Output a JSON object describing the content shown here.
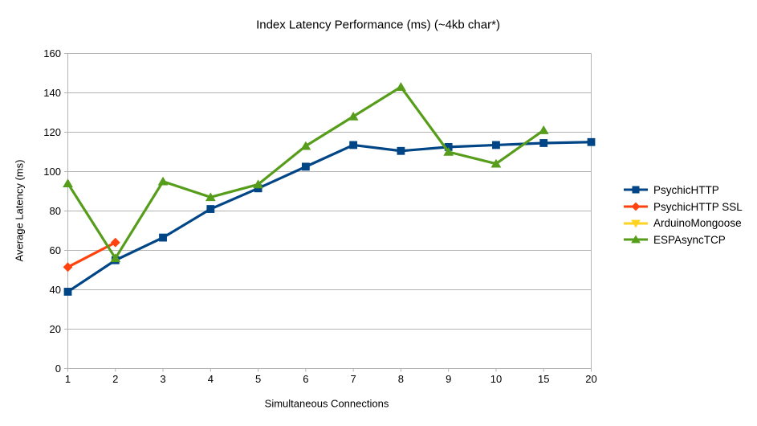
{
  "chart_data": {
    "type": "line",
    "title": "Index Latency Performance (ms) (~4kb char*)",
    "xlabel": "Simultaneous Connections",
    "ylabel": "Average Latency (ms)",
    "categories": [
      "1",
      "2",
      "3",
      "4",
      "5",
      "6",
      "7",
      "8",
      "9",
      "10",
      "15",
      "20"
    ],
    "ylim": [
      0,
      160
    ],
    "yticks": [
      0,
      20,
      40,
      60,
      80,
      100,
      120,
      140,
      160
    ],
    "grid": "horizontal",
    "legend_position": "right",
    "colors": {
      "grid": "#b3b3b3",
      "axis_text": "#000000",
      "background": "#ffffff"
    },
    "series": [
      {
        "name": "PsychicHTTP",
        "color": "#004586",
        "marker": "square",
        "values": [
          39,
          55,
          66.5,
          81,
          91.5,
          102.5,
          113.5,
          110.5,
          112.5,
          113.5,
          114.5,
          115
        ]
      },
      {
        "name": "PsychicHTTP SSL",
        "color": "#FF420E",
        "marker": "diamond",
        "values": [
          51.5,
          64,
          null,
          null,
          null,
          null,
          null,
          null,
          null,
          null,
          null,
          null
        ]
      },
      {
        "name": "ArduinoMongoose",
        "color": "#FFD320",
        "marker": "triangle-down",
        "values": [
          null,
          null,
          null,
          null,
          null,
          null,
          null,
          null,
          null,
          null,
          null,
          null
        ]
      },
      {
        "name": "ESPAsyncTCP",
        "color": "#579D1C",
        "marker": "triangle-up",
        "values": [
          94,
          56,
          95,
          87,
          93.5,
          113,
          128,
          143,
          110,
          104,
          121,
          null
        ]
      }
    ]
  }
}
